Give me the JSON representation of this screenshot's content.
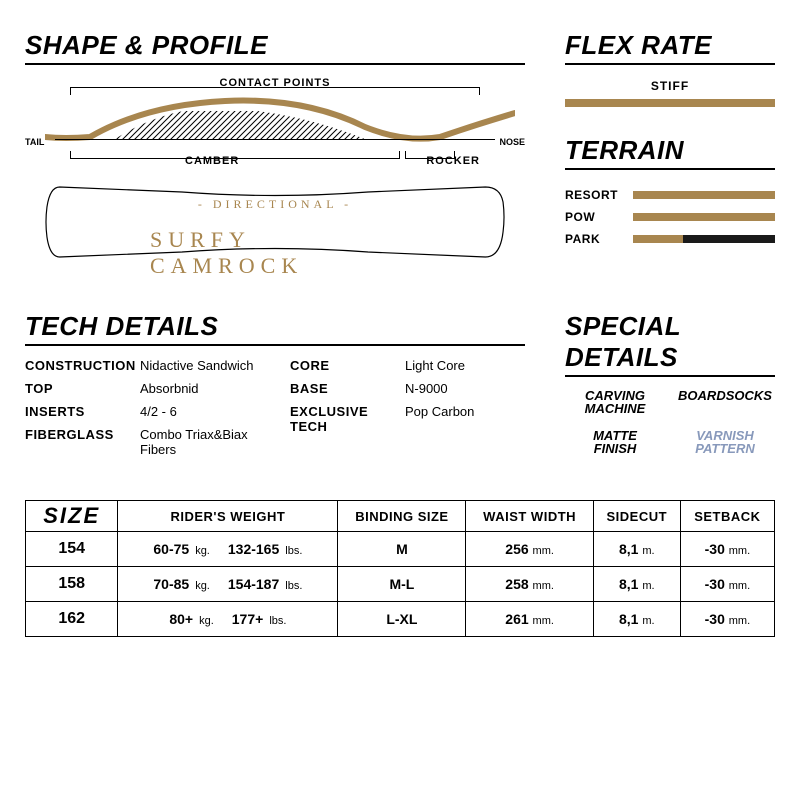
{
  "colors": {
    "gold": "#a8864f",
    "black": "#1a1a1a",
    "varnish_color": "#8899bb"
  },
  "diagram": {
    "title": "SHAPE & PROFILE",
    "contact_points": "CONTACT POINTS",
    "tail": "TAIL",
    "nose": "NOSE",
    "camber": "CAMBER",
    "rocker": "ROCKER",
    "directional": "- DIRECTIONAL -",
    "name": "SURFY CAMROCK",
    "profile_stroke_width": 6
  },
  "flex": {
    "title": "FLEX RATE",
    "label": "STIFF",
    "pct": 100
  },
  "terrain": {
    "title": "TERRAIN",
    "rows": [
      {
        "label": "RESORT",
        "pct": 100
      },
      {
        "label": "POW",
        "pct": 100
      },
      {
        "label": "PARK",
        "pct": 35
      }
    ]
  },
  "tech": {
    "title": "TECH DETAILS",
    "left": [
      {
        "k": "CONSTRUCTION",
        "v": "Nidactive Sandwich"
      },
      {
        "k": "TOP",
        "v": "Absorbnid"
      },
      {
        "k": "INSERTS",
        "v": "4/2 - 6"
      },
      {
        "k": "FIBERGLASS",
        "v": "Combo Triax&Biax Fibers"
      }
    ],
    "right": [
      {
        "k": "CORE",
        "v": "Light Core"
      },
      {
        "k": "BASE",
        "v": "N-9000"
      },
      {
        "k": "EXCLUSIVE TECH",
        "v": "Pop Carbon"
      }
    ]
  },
  "special": {
    "title": "SPECIAL DETAILS",
    "icons": [
      {
        "line1": "CARVING",
        "line2": "MACHINE"
      },
      {
        "line1": "BOARDSOCKS",
        "line2": ""
      },
      {
        "line1": "MATTE",
        "line2": "FINISH"
      },
      {
        "line1": "VARNISH",
        "line2": "PATTERN",
        "varnish": true
      }
    ]
  },
  "sizeTable": {
    "headers": {
      "size": "SIZE",
      "weight": "RIDER'S WEIGHT",
      "binding": "BINDING SIZE",
      "waist": "WAIST WIDTH",
      "sidecut": "SIDECUT",
      "setback": "SETBACK"
    },
    "units": {
      "kg": "kg.",
      "lbs": "lbs.",
      "mm": "mm.",
      "m": "m."
    },
    "rows": [
      {
        "size": "154",
        "kg": "60-75",
        "lbs": "132-165",
        "binding": "M",
        "waist": "256",
        "sidecut": "8,1",
        "setback": "-30"
      },
      {
        "size": "158",
        "kg": "70-85",
        "lbs": "154-187",
        "binding": "M-L",
        "waist": "258",
        "sidecut": "8,1",
        "setback": "-30"
      },
      {
        "size": "162",
        "kg": "80+",
        "lbs": "177+",
        "binding": "L-XL",
        "waist": "261",
        "sidecut": "8,1",
        "setback": "-30"
      }
    ]
  }
}
